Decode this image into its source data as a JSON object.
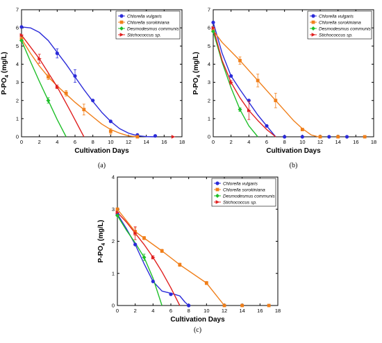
{
  "colors": {
    "chlorella_vulgaris": "#2b2bd9",
    "chlorella_sorokiniana": "#f07f1a",
    "desmodesmus_communis": "#1fbf2a",
    "stichococcus": "#e01f1f"
  },
  "legend": [
    {
      "key": "chlorella_vulgaris",
      "label": "Chlorella vulgaris",
      "marker": "circle"
    },
    {
      "key": "chlorella_sorokiniana",
      "label": "Chlorella sorokiniana",
      "marker": "square"
    },
    {
      "key": "desmodesmus_communis",
      "label": "Desmodesmus communis",
      "marker": "diamond"
    },
    {
      "key": "stichococcus",
      "label": "Stichococcus sp.",
      "marker": "triangle-right"
    }
  ],
  "chart_data": [
    {
      "type": "line",
      "caption": "(a)",
      "xlabel": "Cultivation Days",
      "ylabel": "P-PO4 (mg/L)",
      "ylabel_main": "P-PO",
      "ylabel_sub": "4",
      "ylabel_tail": " (mg/L)",
      "xlim": [
        0,
        18
      ],
      "ylim": [
        0,
        7
      ],
      "xticks": [
        0,
        2,
        4,
        6,
        8,
        10,
        12,
        14,
        16,
        18
      ],
      "yticks": [
        0,
        1,
        2,
        3,
        4,
        5,
        6,
        7
      ],
      "legend_position": "top-right",
      "series": [
        {
          "name": "Chlorella vulgaris",
          "key": "chlorella_vulgaris",
          "x": [
            0,
            4,
            6,
            8,
            10,
            13,
            15
          ],
          "y": [
            6.05,
            4.6,
            3.35,
            2.0,
            0.85,
            0.1,
            0.05
          ],
          "err": [
            0,
            0.25,
            0.35,
            0,
            0,
            0,
            0
          ],
          "curve_x": [
            0,
            1,
            2,
            3,
            4,
            5,
            6,
            7,
            8,
            9,
            10,
            11,
            12,
            13,
            14,
            15
          ],
          "curve_y": [
            6.05,
            6.0,
            5.75,
            5.3,
            4.65,
            4.0,
            3.3,
            2.6,
            1.95,
            1.35,
            0.85,
            0.45,
            0.2,
            0.06,
            0.01,
            0
          ]
        },
        {
          "name": "Chlorella sorokiniana",
          "key": "chlorella_sorokiniana",
          "x": [
            0,
            3,
            5,
            7,
            10,
            13
          ],
          "y": [
            5.4,
            3.3,
            2.4,
            1.5,
            0.3,
            0.0
          ],
          "err": [
            0,
            0.15,
            0.15,
            0.3,
            0.15,
            0
          ],
          "curve_x": [
            0,
            1,
            2,
            3,
            4,
            5,
            6,
            7,
            8,
            9,
            10,
            11,
            12,
            13
          ],
          "curve_y": [
            5.4,
            4.6,
            3.9,
            3.3,
            2.8,
            2.35,
            1.9,
            1.5,
            1.1,
            0.7,
            0.4,
            0.2,
            0.05,
            0
          ]
        },
        {
          "name": "Desmodesmus communis",
          "key": "desmodesmus_communis",
          "x": [
            0,
            3
          ],
          "y": [
            5.3,
            2.0
          ],
          "err": [
            0,
            0.15
          ],
          "curve_x": [
            0,
            1,
            2,
            3,
            4,
            5
          ],
          "curve_y": [
            5.3,
            4.15,
            3.05,
            2.0,
            0.95,
            0
          ]
        },
        {
          "name": "Stichococcus sp.",
          "key": "stichococcus",
          "x": [
            0,
            2,
            4,
            17
          ],
          "y": [
            5.6,
            4.3,
            2.75,
            0.0
          ],
          "err": [
            0,
            0.25,
            0.1,
            0
          ],
          "curve_x": [
            0,
            2,
            4,
            5.5,
            7
          ],
          "curve_y": [
            5.6,
            4.3,
            2.75,
            1.4,
            0
          ]
        }
      ]
    },
    {
      "type": "line",
      "caption": "(b)",
      "xlabel": "Cultivation Days",
      "ylabel": "P-PO4 (mg/L)",
      "ylabel_main": "P-PO",
      "ylabel_sub": "4",
      "ylabel_tail": " (mg/L)",
      "xlim": [
        0,
        18
      ],
      "ylim": [
        0,
        7
      ],
      "xticks": [
        0,
        2,
        4,
        6,
        8,
        10,
        12,
        14,
        16,
        18
      ],
      "yticks": [
        0,
        1,
        2,
        3,
        4,
        5,
        6,
        7
      ],
      "legend_position": "top-right",
      "series": [
        {
          "name": "Chlorella vulgaris",
          "key": "chlorella_vulgaris",
          "x": [
            0,
            2,
            4,
            6,
            8,
            10,
            13,
            15
          ],
          "y": [
            6.3,
            3.35,
            2.0,
            0.6,
            0.0,
            0.0,
            0.0,
            0.0
          ],
          "err": [
            0,
            0,
            0,
            0,
            0,
            0,
            0,
            0
          ],
          "curve_x": [
            0,
            1,
            2,
            3,
            4,
            5,
            6,
            7
          ],
          "curve_y": [
            6.3,
            4.6,
            3.35,
            2.6,
            1.9,
            1.2,
            0.6,
            0
          ]
        },
        {
          "name": "Chlorella sorokiniana",
          "key": "chlorella_sorokiniana",
          "x": [
            0,
            3,
            5,
            7,
            10,
            12,
            14,
            17
          ],
          "y": [
            5.85,
            4.2,
            3.1,
            2.0,
            0.4,
            0.0,
            0.0,
            0.0
          ],
          "err": [
            0,
            0.2,
            0.35,
            0.4,
            0,
            0,
            0,
            0
          ],
          "curve_x": [
            0,
            1,
            2,
            3,
            4,
            5,
            6,
            7,
            8,
            9,
            10,
            11,
            11.8
          ],
          "curve_y": [
            5.85,
            5.2,
            4.7,
            4.2,
            3.65,
            3.1,
            2.55,
            2.0,
            1.45,
            0.9,
            0.45,
            0.1,
            0
          ]
        },
        {
          "name": "Desmodesmus communis",
          "key": "desmodesmus_communis",
          "x": [
            0,
            3
          ],
          "y": [
            5.8,
            1.5
          ],
          "err": [
            0,
            0.1
          ],
          "curve_x": [
            0,
            1,
            2,
            3,
            4,
            5
          ],
          "curve_y": [
            5.8,
            4.1,
            2.7,
            1.5,
            0.6,
            0
          ]
        },
        {
          "name": "Stichococcus sp.",
          "key": "stichococcus",
          "x": [
            0,
            2,
            4
          ],
          "y": [
            6.0,
            3.0,
            1.45
          ],
          "err": [
            0,
            0.1,
            0.5
          ],
          "curve_x": [
            0,
            1,
            2,
            3,
            4,
            5,
            6,
            7
          ],
          "curve_y": [
            6.0,
            4.2,
            3.0,
            2.15,
            1.45,
            0.9,
            0.4,
            0
          ]
        }
      ]
    },
    {
      "type": "line",
      "caption": "(c)",
      "xlabel": "Cultivation Days",
      "ylabel": "P-PO4 (mg/L)",
      "ylabel_main": "P-PO",
      "ylabel_sub": "4",
      "ylabel_tail": " (mg/L)",
      "xlim": [
        0,
        18
      ],
      "ylim": [
        0,
        4
      ],
      "xticks": [
        0,
        2,
        4,
        6,
        8,
        10,
        12,
        14,
        16,
        18
      ],
      "yticks": [
        0,
        1,
        2,
        3,
        4
      ],
      "legend_position": "top-right",
      "series": [
        {
          "name": "Chlorella vulgaris",
          "key": "chlorella_vulgaris",
          "x": [
            0,
            2,
            4,
            6,
            8
          ],
          "y": [
            2.85,
            1.9,
            0.75,
            0.35,
            0.0
          ],
          "err": [
            0,
            0,
            0,
            0,
            0
          ],
          "curve_x": [
            0,
            1,
            2,
            3,
            4,
            5,
            6,
            7,
            7.6,
            8
          ],
          "curve_y": [
            2.85,
            2.4,
            1.9,
            1.3,
            0.75,
            0.45,
            0.38,
            0.3,
            0.1,
            0
          ]
        },
        {
          "name": "Chlorella sorokiniana",
          "key": "chlorella_sorokiniana",
          "x": [
            0,
            2,
            3,
            5,
            7,
            10,
            12,
            14,
            17
          ],
          "y": [
            3.0,
            2.3,
            2.1,
            1.7,
            1.27,
            0.7,
            0.0,
            0.0,
            0.0
          ],
          "err": [
            0,
            0.12,
            0.05,
            0.05,
            0.05,
            0.05,
            0,
            0,
            0
          ],
          "curve_x": [
            0,
            2,
            3,
            5,
            7,
            10,
            11,
            12
          ],
          "curve_y": [
            3.0,
            2.3,
            2.1,
            1.7,
            1.27,
            0.7,
            0.35,
            0
          ]
        },
        {
          "name": "Desmodesmus communis",
          "key": "desmodesmus_communis",
          "x": [
            0,
            3
          ],
          "y": [
            2.8,
            1.5
          ],
          "err": [
            0,
            0.1
          ],
          "curve_x": [
            0,
            1,
            2,
            3,
            4,
            5
          ],
          "curve_y": [
            2.8,
            2.35,
            1.95,
            1.5,
            0.85,
            0
          ]
        },
        {
          "name": "Stichococcus sp.",
          "key": "stichococcus",
          "x": [
            0,
            2,
            4
          ],
          "y": [
            2.9,
            2.25,
            1.5
          ],
          "err": [
            0,
            0.2,
            0.05
          ],
          "curve_x": [
            0,
            1,
            2,
            3,
            4,
            5,
            6,
            7
          ],
          "curve_y": [
            2.9,
            2.6,
            2.25,
            1.9,
            1.5,
            1.05,
            0.55,
            0
          ]
        }
      ]
    }
  ]
}
